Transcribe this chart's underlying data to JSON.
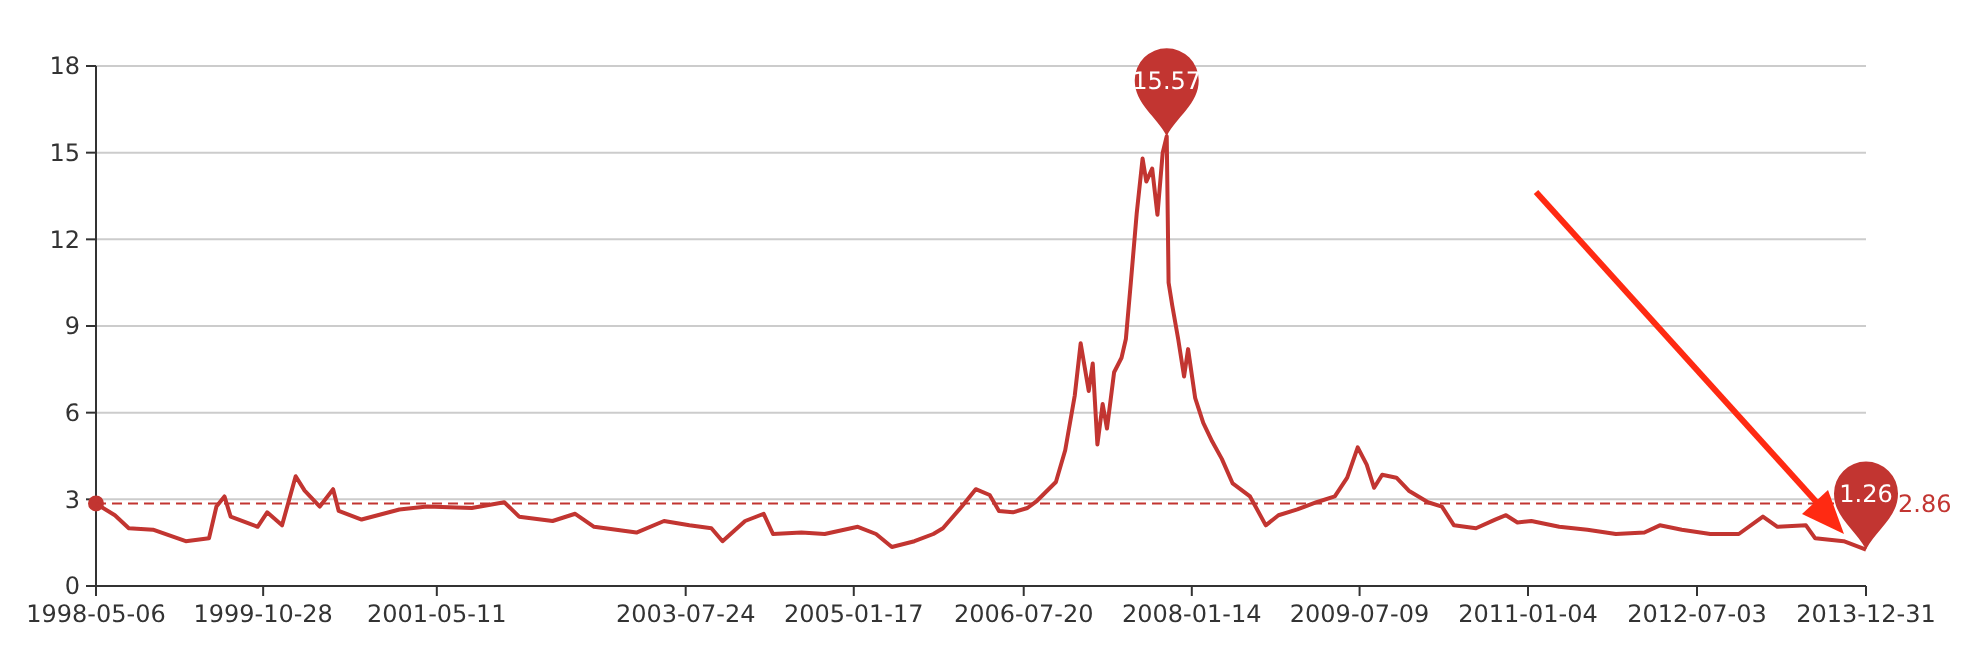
{
  "chart_data": {
    "type": "line",
    "x": [
      "1998-05-06",
      "1998-07-06",
      "1998-08-20",
      "1998-11-06",
      "1999-02-20",
      "1999-05-06",
      "1999-05-30",
      "1999-06-25",
      "1999-07-15",
      "1999-10-10",
      "1999-11-10",
      "1999-12-28",
      "2000-02-10",
      "2000-03-10",
      "2000-04-28",
      "2000-06-10",
      "2000-06-28",
      "2000-09-10",
      "2001-01-10",
      "2001-04-10",
      "2001-09-01",
      "2001-12-15",
      "2002-02-01",
      "2002-05-20",
      "2002-08-01",
      "2002-10-01",
      "2003-02-15",
      "2003-05-15",
      "2003-08-05",
      "2003-10-15",
      "2003-11-20",
      "2004-02-01",
      "2004-04-01",
      "2004-05-01",
      "2004-08-01",
      "2004-10-15",
      "2005-01-30",
      "2005-03-30",
      "2005-05-20",
      "2005-08-01",
      "2005-10-01",
      "2005-11-01",
      "2006-01-01",
      "2006-02-15",
      "2006-04-01",
      "2006-05-01",
      "2006-06-15",
      "2006-08-01",
      "2006-09-01",
      "2006-11-01",
      "2006-12-01",
      "2007-01-01",
      "2007-01-20",
      "2007-02-15",
      "2007-02-28",
      "2007-03-15",
      "2007-04-01",
      "2007-04-15",
      "2007-05-08",
      "2007-06-01",
      "2007-06-15",
      "2007-07-01",
      "2007-07-20",
      "2007-08-08",
      "2007-08-20",
      "2007-09-08",
      "2007-09-25",
      "2007-10-12",
      "2007-10-25",
      "2007-10-31",
      "2007-11-12",
      "2007-12-01",
      "2007-12-20",
      "2008-01-02",
      "2008-01-25",
      "2008-02-20",
      "2008-03-20",
      "2008-04-20",
      "2008-05-25",
      "2008-07-20",
      "2008-09-09",
      "2008-10-20",
      "2008-12-20",
      "2009-02-20",
      "2009-04-20",
      "2009-05-30",
      "2009-07-03",
      "2009-08-01",
      "2009-08-25",
      "2009-09-20",
      "2009-11-05",
      "2009-12-15",
      "2010-02-15",
      "2010-04-01",
      "2010-05-10",
      "2010-07-20",
      "2010-09-20",
      "2010-10-25",
      "2010-12-01",
      "2011-01-15",
      "2011-04-15",
      "2011-07-15",
      "2011-10-15",
      "2012-01-15",
      "2012-03-05",
      "2012-05-15",
      "2012-08-15",
      "2012-11-15",
      "2013-02-01",
      "2013-03-20",
      "2013-06-20",
      "2013-07-20",
      "2013-10-20",
      "2013-12-31"
    ],
    "series": [
      {
        "color": "#c23531",
        "values": [
          2.85,
          2.45,
          2.0,
          1.95,
          1.55,
          1.65,
          2.75,
          3.1,
          2.4,
          2.05,
          2.55,
          2.1,
          3.8,
          3.3,
          2.75,
          3.35,
          2.6,
          2.3,
          2.65,
          2.75,
          2.7,
          2.9,
          2.4,
          2.25,
          2.5,
          2.05,
          1.85,
          2.25,
          2.1,
          2.0,
          1.55,
          2.25,
          2.5,
          1.8,
          1.85,
          1.8,
          2.05,
          1.8,
          1.35,
          1.55,
          1.8,
          2.0,
          2.75,
          3.35,
          3.15,
          2.6,
          2.55,
          2.7,
          2.95,
          3.6,
          4.7,
          6.6,
          8.4,
          6.75,
          7.7,
          4.9,
          6.3,
          5.45,
          7.4,
          7.9,
          8.55,
          10.5,
          12.9,
          14.8,
          14.0,
          14.45,
          12.85,
          15.0,
          15.57,
          10.5,
          9.7,
          8.55,
          7.25,
          8.2,
          6.5,
          5.65,
          5.0,
          4.4,
          3.55,
          3.1,
          2.1,
          2.45,
          2.65,
          2.9,
          3.1,
          3.75,
          4.8,
          4.2,
          3.4,
          3.85,
          3.75,
          3.3,
          2.9,
          2.75,
          2.1,
          2.0,
          2.3,
          2.45,
          2.2,
          2.25,
          2.05,
          1.95,
          1.8,
          1.85,
          2.1,
          1.95,
          1.8,
          1.8,
          2.4,
          2.05,
          2.1,
          1.65,
          1.55,
          1.26
        ]
      }
    ],
    "xlim": [
      "1998-05-06",
      "2013-12-31"
    ],
    "xticks": [
      {
        "value": "1998-05-06",
        "label": "1998-05-06"
      },
      {
        "value": "1999-10-28",
        "label": "1999-10-28"
      },
      {
        "value": "2001-05-11",
        "label": "2001-05-11"
      },
      {
        "value": "2003-07-24",
        "label": "2003-07-24"
      },
      {
        "value": "2005-01-17",
        "label": "2005-01-17"
      },
      {
        "value": "2006-07-20",
        "label": "2006-07-20"
      },
      {
        "value": "2008-01-14",
        "label": "2008-01-14"
      },
      {
        "value": "2009-07-09",
        "label": "2009-07-09"
      },
      {
        "value": "2011-01-04",
        "label": "2011-01-04"
      },
      {
        "value": "2012-07-03",
        "label": "2012-07-03"
      },
      {
        "value": "2013-12-31",
        "label": "2013-12-31"
      }
    ],
    "ylim": [
      0,
      18
    ],
    "yticks": [
      0,
      3,
      6,
      9,
      12,
      15,
      18
    ],
    "grid": "y",
    "marker": "none",
    "line_style": "solid",
    "ref_lines": [
      {
        "axis": "y",
        "value": 2.86,
        "label": "2.86",
        "color": "#c23531",
        "line_style": "dashed"
      }
    ],
    "annotations": [
      {
        "text": "15.57",
        "x": "2007-10-25",
        "y": 15.57
      },
      {
        "text": "1.26",
        "x": "2013-12-31",
        "y": 1.26
      }
    ]
  }
}
